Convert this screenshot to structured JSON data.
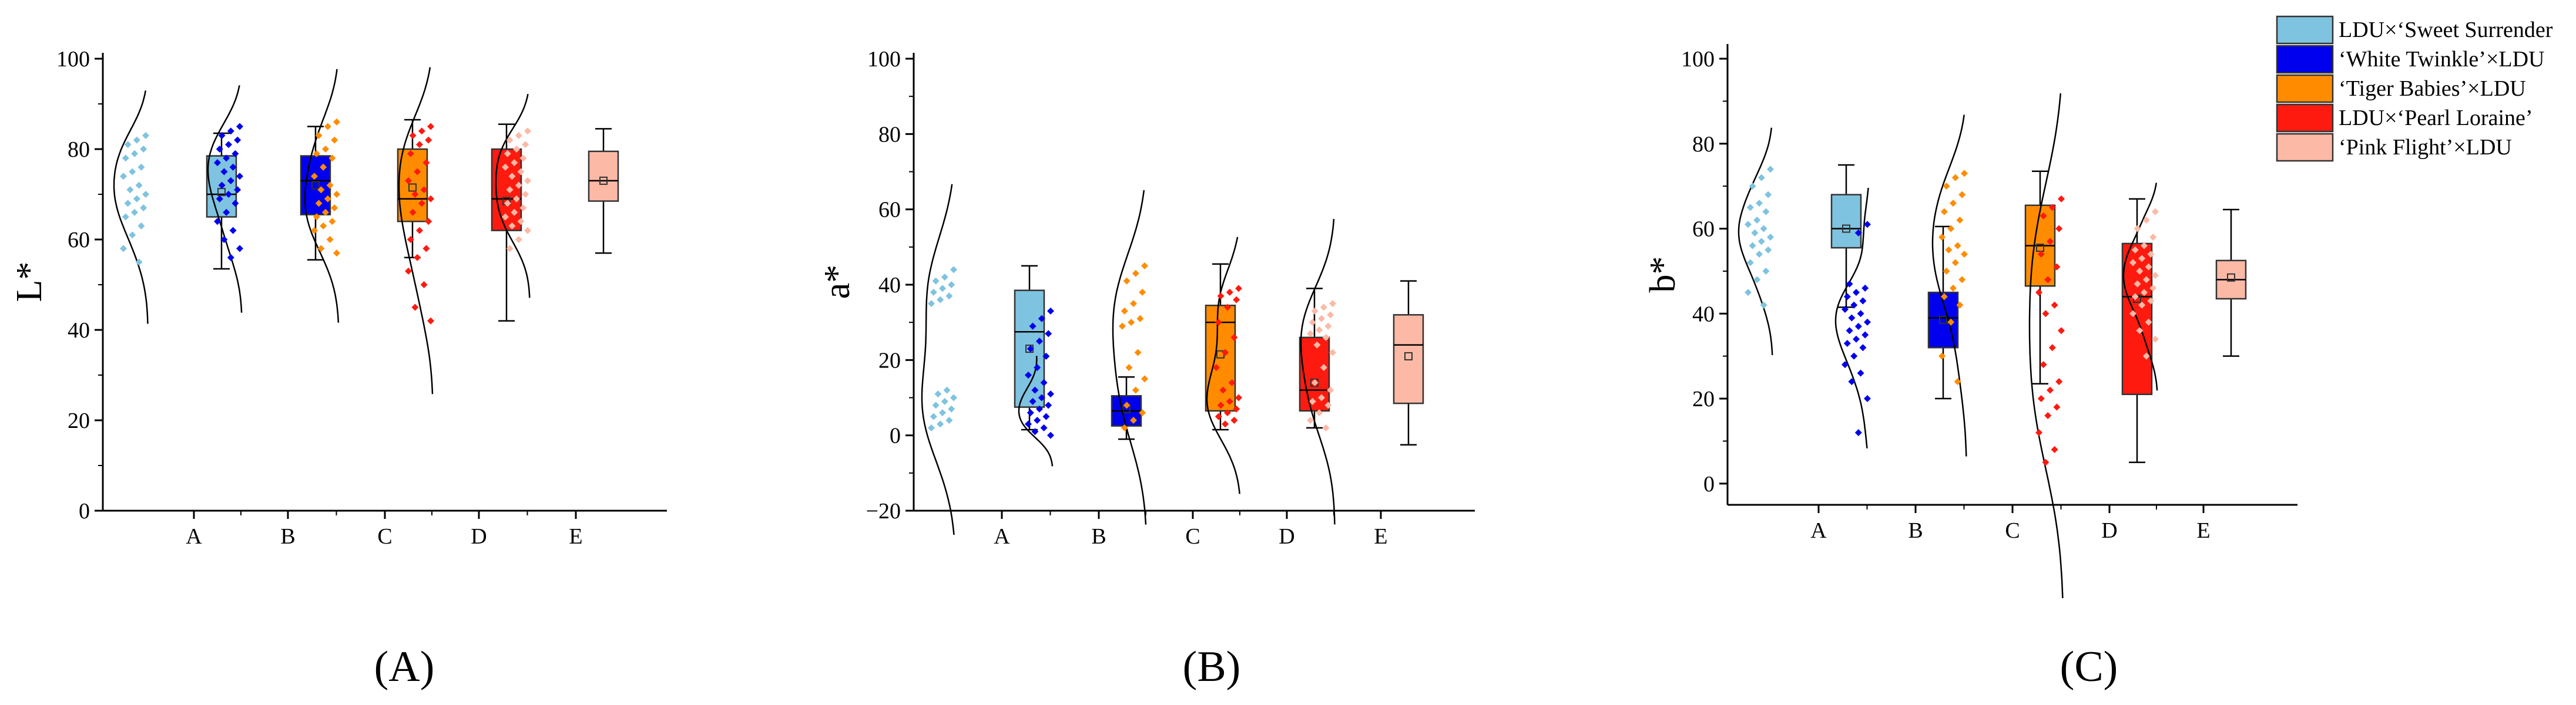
{
  "chart_data": [
    {
      "type": "box-violin-scatter",
      "panel_label": "(A)",
      "ylabel": "L*",
      "xlabel": "",
      "categories": [
        "A",
        "B",
        "C",
        "D",
        "E"
      ],
      "ylim": [
        0,
        100
      ],
      "yticks": [
        0,
        20,
        40,
        60,
        80,
        100
      ],
      "boxes": [
        {
          "category": "A",
          "min": 53.5,
          "q1": 65,
          "median": 70,
          "mean": 70.5,
          "q3": 78.5,
          "max": 83.5
        },
        {
          "category": "B",
          "min": 55.5,
          "q1": 65.5,
          "median": 73,
          "mean": 72,
          "q3": 78.5,
          "max": 85
        },
        {
          "category": "C",
          "min": 56,
          "q1": 64,
          "median": 69,
          "mean": 71.5,
          "q3": 80,
          "max": 86.5
        },
        {
          "category": "D",
          "min": 42,
          "q1": 62,
          "median": 69,
          "mean": 68.5,
          "q3": 80,
          "max": 85.5
        },
        {
          "category": "E",
          "min": 57,
          "q1": 68.5,
          "median": 73,
          "mean": 73,
          "q3": 79.5,
          "max": 84.5
        }
      ],
      "points": [
        [
          83,
          82,
          81,
          80,
          79,
          78,
          76,
          75,
          74,
          72,
          71,
          70,
          69,
          68,
          67,
          66,
          65,
          63,
          61,
          58,
          55
        ],
        [
          85,
          84,
          83,
          82,
          81,
          80,
          79,
          78,
          77,
          76,
          75,
          74,
          73,
          72,
          71,
          70,
          69,
          68,
          66,
          64,
          62,
          60,
          58,
          56
        ],
        [
          86,
          85,
          83,
          82,
          80,
          79,
          78,
          76,
          74,
          72,
          71,
          70,
          69,
          68,
          67,
          66,
          65,
          64,
          63,
          62,
          60,
          58,
          57
        ],
        [
          85,
          84,
          83,
          82,
          81,
          79,
          77,
          75,
          73,
          71,
          70,
          69,
          68,
          66,
          64,
          62,
          60,
          58,
          56,
          53,
          50,
          45,
          42
        ],
        [
          84,
          83,
          82,
          81,
          80,
          79,
          78,
          77,
          76,
          75,
          74,
          73,
          72,
          71,
          70,
          69,
          68,
          67,
          66,
          65,
          64,
          63,
          62,
          60,
          58
        ]
      ]
    },
    {
      "type": "box-violin-scatter",
      "panel_label": "(B)",
      "ylabel": "a*",
      "xlabel": "",
      "categories": [
        "A",
        "B",
        "C",
        "D",
        "E"
      ],
      "ylim": [
        -20,
        100
      ],
      "yticks": [
        -20,
        0,
        20,
        40,
        60,
        80,
        100
      ],
      "boxes": [
        {
          "category": "A",
          "min": 1.5,
          "q1": 7.5,
          "median": 27.5,
          "mean": 23,
          "q3": 38.5,
          "max": 45
        },
        {
          "category": "B",
          "min": -1,
          "q1": 2.5,
          "median": 6.5,
          "mean": 7,
          "q3": 10.5,
          "max": 15.5
        },
        {
          "category": "C",
          "min": 1.5,
          "q1": 6.5,
          "median": 30,
          "mean": 21.5,
          "q3": 34.5,
          "max": 45.5
        },
        {
          "category": "D",
          "min": 2,
          "q1": 6.5,
          "median": 12,
          "mean": 14,
          "q3": 26,
          "max": 39
        },
        {
          "category": "E",
          "min": -2.5,
          "q1": 8.5,
          "median": 24,
          "mean": 21,
          "q3": 32,
          "max": 41
        }
      ],
      "points": [
        [
          44,
          42,
          41,
          40,
          39,
          38,
          37,
          36,
          35,
          12,
          11,
          10,
          9,
          8,
          7,
          6,
          5,
          4,
          3,
          2
        ],
        [
          33,
          31,
          29,
          27,
          25,
          23,
          21,
          18,
          16,
          14,
          12,
          11,
          10,
          9,
          8,
          7,
          6,
          5,
          4,
          3,
          2,
          1,
          0
        ],
        [
          45,
          43,
          41,
          38,
          35,
          33,
          31,
          30,
          29,
          22,
          18,
          15,
          12,
          8,
          6,
          4,
          2
        ],
        [
          39,
          38,
          37,
          36,
          34,
          30,
          26,
          22,
          18,
          14,
          12,
          10,
          9,
          8,
          7,
          6,
          5,
          4,
          3
        ],
        [
          35,
          34,
          33,
          32,
          31,
          30,
          29,
          28,
          27,
          26,
          24,
          22,
          18,
          14,
          12,
          10,
          9,
          8,
          6,
          4,
          2
        ]
      ]
    },
    {
      "type": "box-violin-scatter",
      "panel_label": "(C)",
      "ylabel": "b*",
      "xlabel": "",
      "categories": [
        "A",
        "B",
        "C",
        "D",
        "E"
      ],
      "ylim": [
        -5,
        100
      ],
      "yticks": [
        0,
        20,
        40,
        60,
        80,
        100
      ],
      "legend": {
        "position": "top-right",
        "entries": [
          {
            "label": "LDU×‘Sweet Surrender",
            "color": "#7ec3df"
          },
          {
            "label": "‘White Twinkle’×LDU",
            "color": "#0000ee"
          },
          {
            "label": "‘Tiger Babies’×LDU",
            "color": "#ff8c00"
          },
          {
            "label": "LDU×‘Pearl Loraine’",
            "color": "#ff1a0f"
          },
          {
            "label": "‘Pink Flight’×LDU",
            "color": "#fbb9a6"
          }
        ]
      },
      "boxes": [
        {
          "category": "A",
          "min": 41.5,
          "q1": 55.5,
          "median": 60,
          "mean": 60,
          "q3": 68,
          "max": 75
        },
        {
          "category": "B",
          "min": 20,
          "q1": 32,
          "median": 39,
          "mean": 38.5,
          "q3": 45,
          "max": 60.5
        },
        {
          "category": "C",
          "min": 23.5,
          "q1": 46.5,
          "median": 56,
          "mean": 55.5,
          "q3": 65.5,
          "max": 73.5
        },
        {
          "category": "D",
          "min": 5,
          "q1": 21,
          "median": 44,
          "mean": 43.5,
          "q3": 56.5,
          "max": 67
        },
        {
          "category": "E",
          "min": 30,
          "q1": 43.5,
          "median": 48,
          "mean": 48.5,
          "q3": 52.5,
          "max": 64.5
        }
      ],
      "points": [
        [
          74,
          72,
          70,
          68,
          66,
          65,
          64,
          62,
          61,
          60,
          59,
          58,
          57,
          56,
          55,
          54,
          52,
          50,
          48,
          45,
          42
        ],
        [
          61,
          59,
          47,
          46,
          45,
          44,
          43,
          42,
          41,
          40,
          39,
          38,
          37,
          36,
          35,
          34,
          33,
          32,
          30,
          28,
          26,
          24,
          20,
          12
        ],
        [
          73,
          72,
          70,
          68,
          66,
          64,
          62,
          60,
          58,
          56,
          55,
          54,
          52,
          50,
          48,
          46,
          44,
          42,
          38,
          30,
          24
        ],
        [
          67,
          65,
          63,
          60,
          57,
          54,
          51,
          48,
          45,
          42,
          40,
          36,
          32,
          28,
          24,
          22,
          20,
          18,
          16,
          12,
          8,
          5
        ],
        [
          64,
          62,
          60,
          58,
          56,
          55,
          54,
          53,
          52,
          51,
          50,
          49,
          48,
          47,
          46,
          45,
          44,
          43,
          42,
          40,
          38,
          36,
          34,
          30
        ]
      ]
    }
  ],
  "series_colors": [
    "#7ec3df",
    "#0000ee",
    "#ff8c00",
    "#ff1a0f",
    "#fbb9a6"
  ]
}
